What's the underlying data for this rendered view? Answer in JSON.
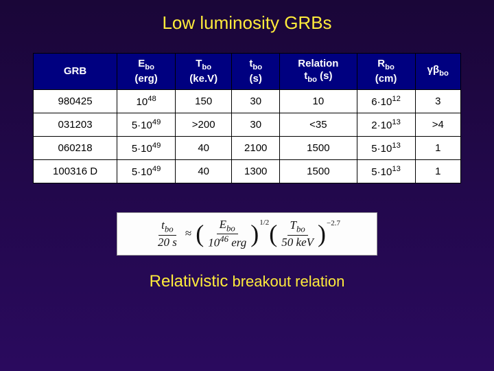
{
  "title": "Low luminosity GRBs",
  "headers": {
    "c0": "GRB",
    "c1a": "E",
    "c1b": "bo",
    "c1c": "(erg)",
    "c2a": "T",
    "c2b": "bo",
    "c2c": "(ke.V)",
    "c3a": "t",
    "c3b": "bo",
    "c3c": "(s)",
    "c4a": "Relation",
    "c4b": "t",
    "c4c": "bo",
    "c4d": " (s)",
    "c5a": "R",
    "c5b": "bo",
    "c5c": "(cm)",
    "c6a": "γβ",
    "c6b": "bo"
  },
  "rows": [
    {
      "c0": "980425",
      "c1a": "10",
      "c1b": "48",
      "c2": "150",
      "c3": "30",
      "c4": "10",
      "c5a": "6·10",
      "c5b": "12",
      "c6": "3"
    },
    {
      "c0": "031203",
      "c1a": "5·10",
      "c1b": "49",
      "c2": ">200",
      "c3": "30",
      "c4": "<35",
      "c5a": "2·10",
      "c5b": "13",
      "c6": ">4"
    },
    {
      "c0": "060218",
      "c1a": "5·10",
      "c1b": "49",
      "c2": "40",
      "c3": "2100",
      "c4": "1500",
      "c5a": "5·10",
      "c5b": "13",
      "c6": "1"
    },
    {
      "c0": "100316 D",
      "c1a": "5·10",
      "c1b": "49",
      "c2": "40",
      "c3": "1300",
      "c4": "1500",
      "c5a": "5·10",
      "c5b": "13",
      "c6": "1"
    }
  ],
  "formula": {
    "lhs_num_a": "t",
    "lhs_num_b": "bo",
    "lhs_den": "20 s",
    "r1_num_a": "E",
    "r1_num_b": "bo",
    "r1_den_a": "10",
    "r1_den_b": "46",
    "r1_den_c": " erg",
    "r1_pow": "1/2",
    "r2_num_a": "T",
    "r2_num_b": "bo",
    "r2_den": "50 keV",
    "r2_pow": "−2.7"
  },
  "caption_a": "Relativistic",
  "caption_b": " breakout relation"
}
